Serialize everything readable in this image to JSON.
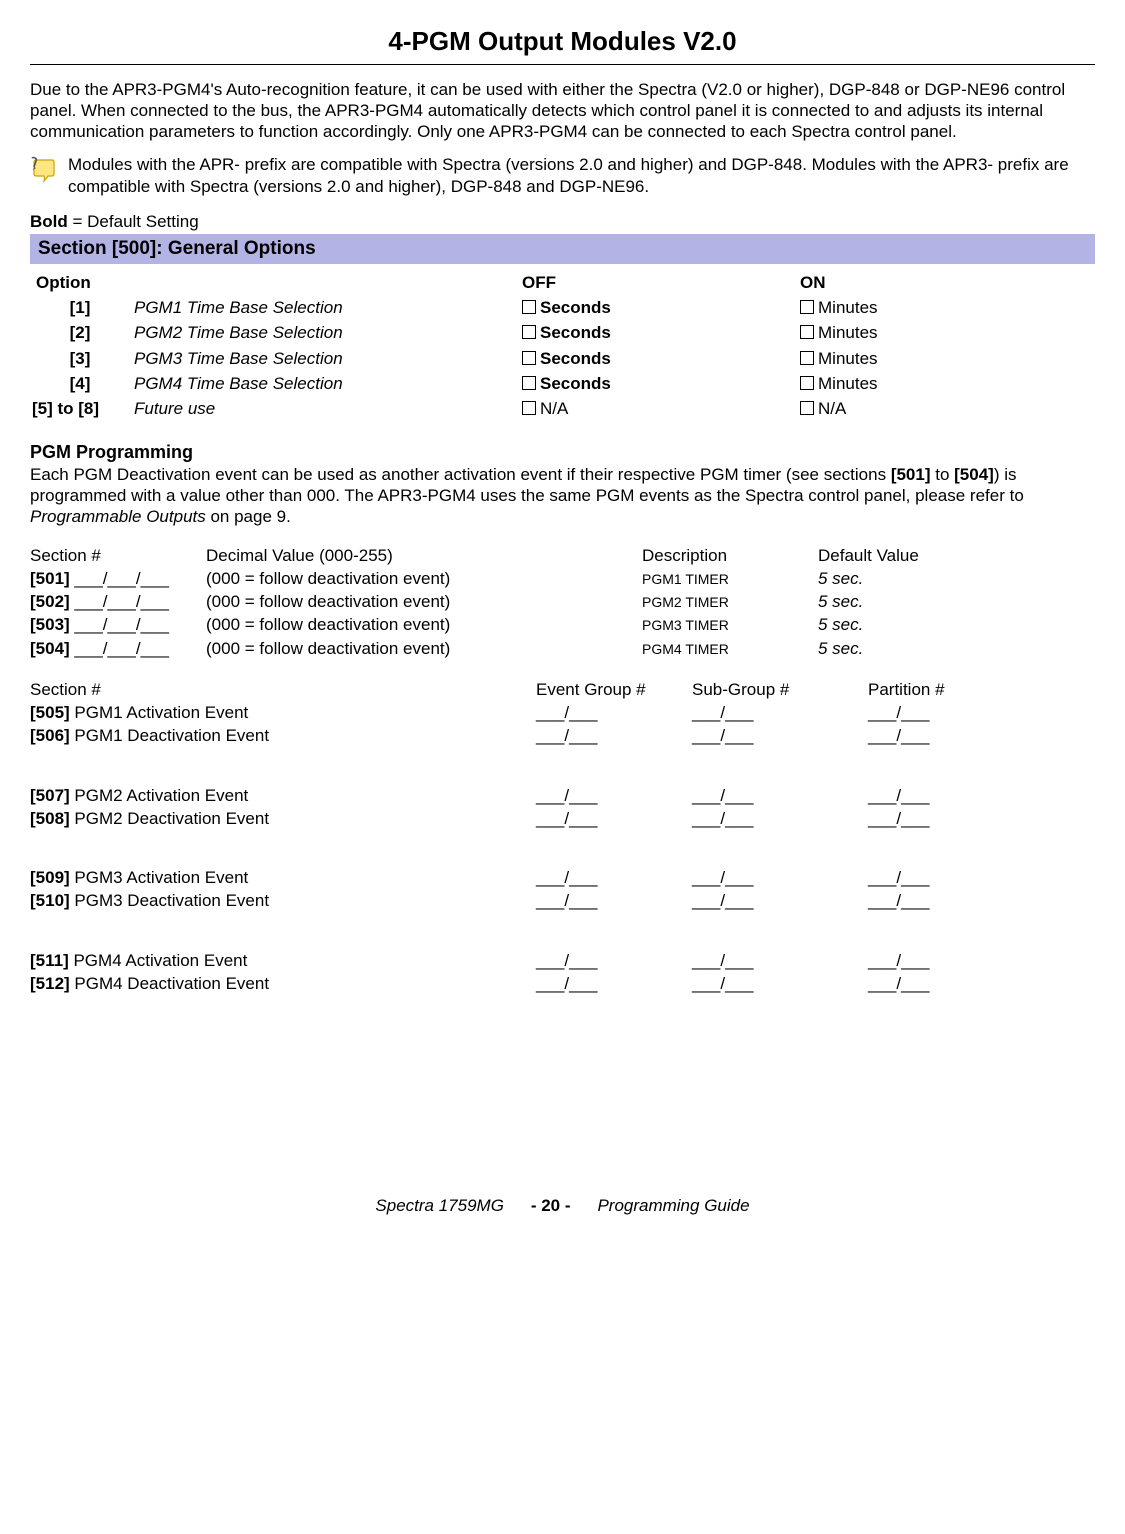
{
  "title": "4-PGM Output Modules V2.0",
  "intro": "Due to the APR3-PGM4's Auto-recognition feature, it can be used with either the Spectra (V2.0 or higher), DGP-848 or DGP-NE96 control panel. When connected to the bus, the APR3-PGM4 automatically detects which control panel it is connected to and adjusts its internal communication parameters to function accordingly. Only one APR3-PGM4 can be connected to each Spectra control panel.",
  "note": "Modules with the APR- prefix are compatible with Spectra (versions 2.0 and higher) and DGP-848. Modules with the APR3- prefix are compatible with Spectra (versions 2.0 and higher), DGP-848 and DGP-NE96.",
  "bold_default_prefix": "Bold",
  "bold_default_rest": " = Default Setting",
  "section500_header": "Section [500]: General Options",
  "options_headers": {
    "option": "Option",
    "off": "OFF",
    "on": "ON"
  },
  "options": [
    {
      "num": "[1]",
      "desc": "PGM1 Time Base Selection",
      "off": "Seconds",
      "off_bold": true,
      "on": "Minutes",
      "on_bold": false
    },
    {
      "num": "[2]",
      "desc": "PGM2 Time Base Selection",
      "off": "Seconds",
      "off_bold": true,
      "on": "Minutes",
      "on_bold": false
    },
    {
      "num": "[3]",
      "desc": "PGM3 Time Base Selection",
      "off": "Seconds",
      "off_bold": true,
      "on": "Minutes",
      "on_bold": false
    },
    {
      "num": "[4]",
      "desc": "PGM4 Time Base Selection",
      "off": "Seconds",
      "off_bold": true,
      "on": "Minutes",
      "on_bold": false
    },
    {
      "num": "[5] to [8]",
      "desc": "Future use",
      "off": "N/A",
      "off_bold": false,
      "on": "N/A",
      "on_bold": false
    }
  ],
  "pgm_heading": "PGM Programming",
  "pgm_desc_1": "Each PGM Deactivation event can be used as another activation event if their respective PGM timer (see sections ",
  "pgm_desc_bold1": "[501]",
  "pgm_desc_2": " to ",
  "pgm_desc_bold2": "[504]",
  "pgm_desc_3": ") is programmed with a value other than 000. The APR3-PGM4 uses the same PGM events as the Spectra control panel, please refer to ",
  "pgm_desc_italic": "Programmable Outputs",
  "pgm_desc_4": " on page 9.",
  "timer_headers": {
    "sec": "Section #",
    "dec": "Decimal Value (000-255)",
    "desc": "Description",
    "def": "Default Value"
  },
  "timers": [
    {
      "sec": "[501]",
      "dec": "(000 = follow deactivation event)",
      "desc": "PGM1 TIMER",
      "def": "5 sec."
    },
    {
      "sec": "[502]",
      "dec": "(000 = follow deactivation event)",
      "desc": "PGM2 TIMER",
      "def": "5 sec."
    },
    {
      "sec": "[503]",
      "dec": "(000 = follow deactivation event)",
      "desc": "PGM3 TIMER",
      "def": "5 sec."
    },
    {
      "sec": "[504]",
      "dec": "(000 = follow deactivation event)",
      "desc": "PGM4 TIMER",
      "def": "5 sec."
    }
  ],
  "event_headers": {
    "sec": "Section #",
    "eg": "Event Group #",
    "sg": "Sub-Group #",
    "pt": "Partition #"
  },
  "event_groups": [
    [
      {
        "sec": "[505]",
        "label": "PGM1 Activation Event"
      },
      {
        "sec": "[506]",
        "label": "PGM1 Deactivation Event"
      }
    ],
    [
      {
        "sec": "[507]",
        "label": "PGM2 Activation Event"
      },
      {
        "sec": "[508]",
        "label": "PGM2 Deactivation Event"
      }
    ],
    [
      {
        "sec": "[509]",
        "label": "PGM3 Activation Event"
      },
      {
        "sec": "[510]",
        "label": "PGM3 Deactivation Event"
      }
    ],
    [
      {
        "sec": "[511]",
        "label": "PGM4 Activation Event"
      },
      {
        "sec": "[512]",
        "label": "PGM4 Deactivation Event"
      }
    ]
  ],
  "blank3": "___/___/___",
  "blank2": "___/___",
  "footer": {
    "left": "Spectra 1759MG",
    "page": "- 20 -",
    "right": "Programming Guide"
  },
  "colors": {
    "section_bg": "#b3b3e6",
    "rule": "#000000"
  }
}
